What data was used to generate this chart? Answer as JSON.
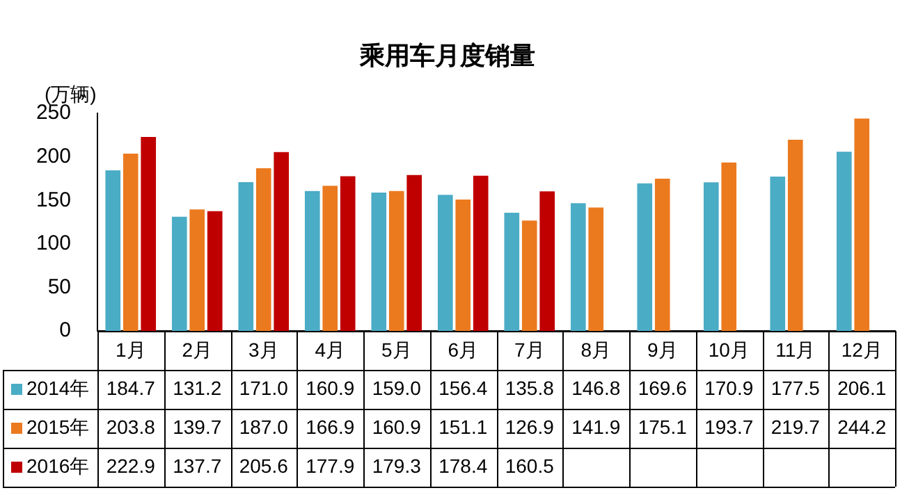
{
  "chart_data": {
    "type": "bar",
    "title": "乘用车月度销量",
    "ylabel": "(万辆)",
    "categories": [
      "1月",
      "2月",
      "3月",
      "4月",
      "5月",
      "6月",
      "7月",
      "8月",
      "9月",
      "10月",
      "11月",
      "12月"
    ],
    "series": [
      {
        "name": "2014年",
        "color": "#4bacc6",
        "values": [
          184.7,
          131.2,
          171.0,
          160.9,
          159.0,
          156.4,
          135.8,
          146.8,
          169.6,
          170.9,
          177.5,
          206.1
        ],
        "value_labels": [
          "184.7",
          "131.2",
          "171.0",
          "160.9",
          "159.0",
          "156.4",
          "135.8",
          "146.8",
          "169.6",
          "170.9",
          "177.5",
          "206.1"
        ]
      },
      {
        "name": "2015年",
        "color": "#eb7a1f",
        "values": [
          203.8,
          139.7,
          187.0,
          166.9,
          160.9,
          151.1,
          126.9,
          141.9,
          175.1,
          193.7,
          219.7,
          244.2
        ],
        "value_labels": [
          "203.8",
          "139.7",
          "187.0",
          "166.9",
          "160.9",
          "151.1",
          "126.9",
          "141.9",
          "175.1",
          "193.7",
          "219.7",
          "244.2"
        ]
      },
      {
        "name": "2016年",
        "color": "#c00000",
        "values": [
          222.9,
          137.7,
          205.6,
          177.9,
          179.3,
          178.4,
          160.5,
          null,
          null,
          null,
          null,
          null
        ],
        "value_labels": [
          "222.9",
          "137.7",
          "205.6",
          "177.9",
          "179.3",
          "178.4",
          "160.5",
          null,
          null,
          null,
          null,
          null
        ]
      }
    ],
    "ylim": [
      0,
      250
    ],
    "yticks": [
      0,
      50,
      100,
      150,
      200,
      250
    ],
    "grid": false,
    "legend": "bottom"
  }
}
